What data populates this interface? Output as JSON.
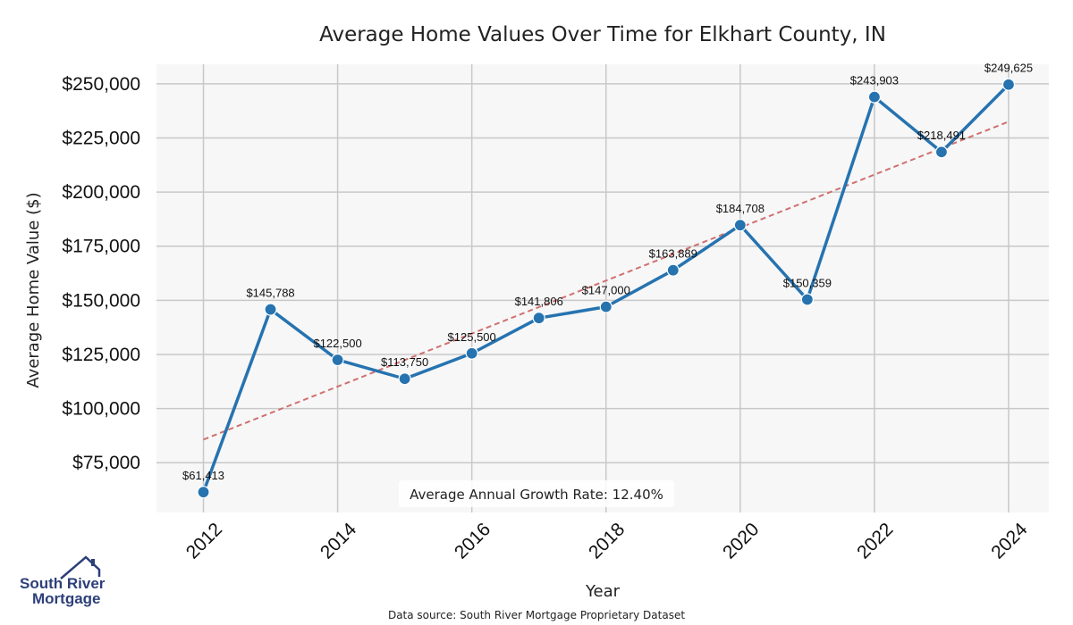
{
  "chart_data": {
    "type": "line",
    "title": "Average Home Values Over Time for Elkhart County, IN",
    "xlabel": "Year",
    "ylabel": "Average Home Value ($)",
    "x": [
      2012,
      2013,
      2014,
      2015,
      2016,
      2017,
      2018,
      2019,
      2020,
      2021,
      2022,
      2023,
      2024
    ],
    "values": [
      61413,
      145788,
      122500,
      113750,
      125500,
      141806,
      147000,
      163889,
      184708,
      150359,
      243903,
      218491,
      249625
    ],
    "data_labels": [
      "$61,413",
      "$145,788",
      "$122,500",
      "$113,750",
      "$125,500",
      "$141,806",
      "$147,000",
      "$163,889",
      "$184,708",
      "$150,359",
      "$243,903",
      "$218,491",
      "$249,625"
    ],
    "xticks": [
      "2012",
      "2014",
      "2016",
      "2018",
      "2020",
      "2022",
      "2024"
    ],
    "yticks": [
      {
        "value": 75000,
        "label": "$75,000"
      },
      {
        "value": 100000,
        "label": "$100,000"
      },
      {
        "value": 125000,
        "label": "$125,000"
      },
      {
        "value": 150000,
        "label": "$150,000"
      },
      {
        "value": 175000,
        "label": "$175,000"
      },
      {
        "value": 200000,
        "label": "$200,000"
      },
      {
        "value": 225000,
        "label": "$225,000"
      },
      {
        "value": 250000,
        "label": "$250,000"
      }
    ],
    "xlim": [
      2011.3,
      2024.6
    ],
    "ylim": [
      52000,
      259000
    ],
    "trendline": {
      "start": [
        2012,
        85700
      ],
      "end": [
        2024,
        232500
      ],
      "style": "dashed",
      "color": "#d07070"
    },
    "line_color": "#2673b0",
    "grid": true,
    "plot_background": "#f7f7f7",
    "annotation": "Average Annual Growth Rate: 12.40%"
  },
  "footer": {
    "source": "Data source: South River Mortgage Proprietary Dataset"
  },
  "logo": {
    "line1": "South River",
    "line2": "Mortgage",
    "color": "#2d3f7a"
  }
}
